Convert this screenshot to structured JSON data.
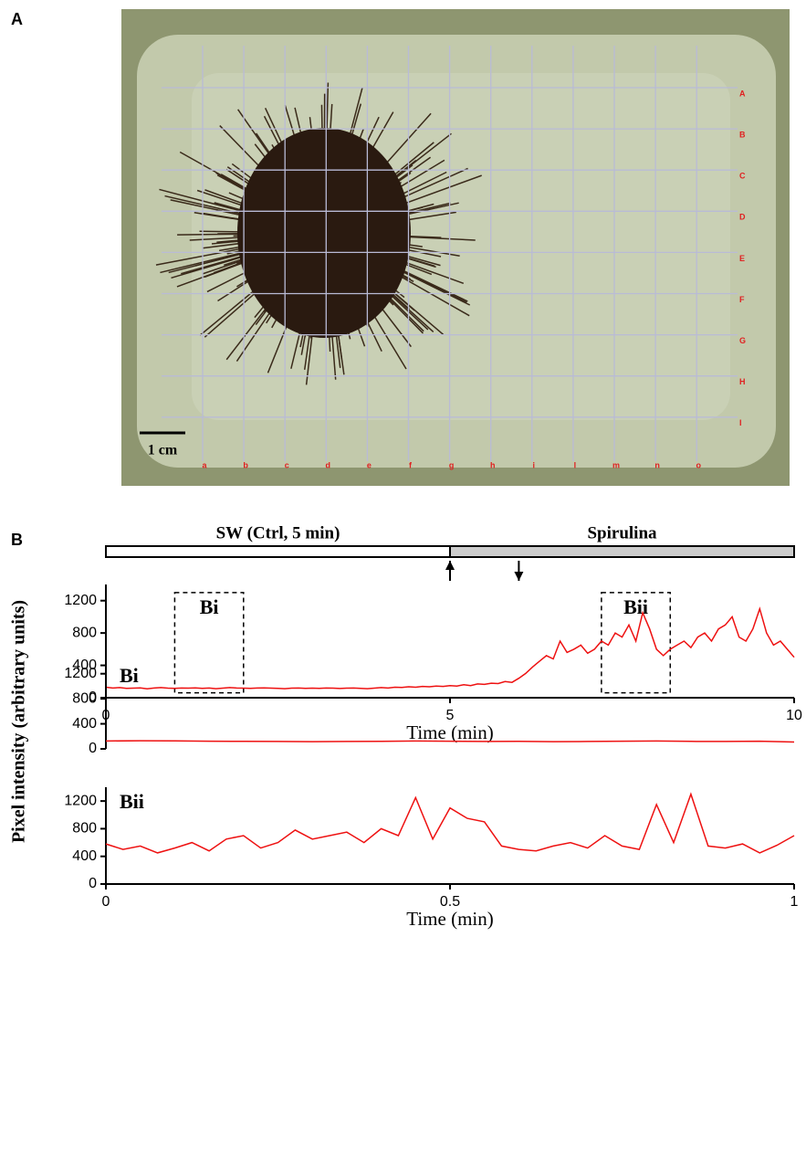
{
  "figure": {
    "panel_a_label": "A",
    "panel_b_label": "B",
    "photo": {
      "row_labels": [
        "A",
        "B",
        "C",
        "D",
        "E",
        "F",
        "G",
        "H",
        "I"
      ],
      "column_labels": [
        "a",
        "b",
        "c",
        "d",
        "e",
        "f",
        "g",
        "h",
        "i",
        "l",
        "m",
        "n",
        "o"
      ],
      "scale_bar": "1 cm"
    },
    "y_label": "Pixel intensity (arbitrary units)"
  },
  "chart_data": [
    {
      "type": "line",
      "xlabel": "Time (min)",
      "color": "#ee1111",
      "xlim": [
        0,
        10
      ],
      "xticks": [
        0,
        5,
        10
      ],
      "ylim": [
        0,
        1400
      ],
      "yticks": [
        0,
        400,
        800,
        1200
      ],
      "conditions": [
        {
          "label": "SW (Ctrl, 5 min)",
          "x": [
            0,
            5
          ]
        },
        {
          "label": "Spirulina",
          "x": [
            5,
            10
          ]
        }
      ],
      "arrows": [
        {
          "x": 5,
          "direction": "up"
        },
        {
          "x": 6,
          "direction": "down"
        }
      ],
      "highlights": [
        {
          "label": "Bi",
          "xlim": [
            1.0,
            2.0
          ],
          "ylim": [
            60,
            1300
          ]
        },
        {
          "label": "Bii",
          "xlim": [
            7.2,
            8.2
          ],
          "ylim": [
            60,
            1300
          ]
        }
      ],
      "x": [
        0,
        0.1,
        0.2,
        0.3,
        0.4,
        0.5,
        0.6,
        0.7,
        0.8,
        0.9,
        1,
        1.1,
        1.2,
        1.3,
        1.4,
        1.5,
        1.6,
        1.7,
        1.8,
        1.9,
        2,
        2.1,
        2.2,
        2.3,
        2.4,
        2.5,
        2.6,
        2.7,
        2.8,
        2.9,
        3,
        3.1,
        3.2,
        3.3,
        3.4,
        3.5,
        3.6,
        3.7,
        3.8,
        3.9,
        4,
        4.1,
        4.2,
        4.3,
        4.4,
        4.5,
        4.6,
        4.7,
        4.8,
        4.9,
        5,
        5.1,
        5.2,
        5.3,
        5.4,
        5.5,
        5.6,
        5.7,
        5.8,
        5.9,
        6,
        6.1,
        6.2,
        6.3,
        6.4,
        6.5,
        6.6,
        6.7,
        6.8,
        6.9,
        7,
        7.1,
        7.2,
        7.3,
        7.4,
        7.5,
        7.6,
        7.7,
        7.8,
        7.9,
        8,
        8.1,
        8.2,
        8.3,
        8.4,
        8.5,
        8.6,
        8.7,
        8.8,
        8.9,
        9,
        9.1,
        9.2,
        9.3,
        9.4,
        9.5,
        9.6,
        9.7,
        9.8,
        9.9,
        10
      ],
      "values": [
        130,
        120,
        125,
        115,
        118,
        122,
        110,
        120,
        125,
        118,
        115,
        120,
        118,
        122,
        115,
        120,
        112,
        118,
        125,
        120,
        118,
        115,
        120,
        122,
        118,
        115,
        112,
        118,
        120,
        116,
        118,
        115,
        120,
        118,
        114,
        118,
        120,
        116,
        112,
        118,
        125,
        120,
        130,
        128,
        135,
        130,
        140,
        135,
        145,
        140,
        150,
        145,
        160,
        150,
        170,
        165,
        180,
        175,
        200,
        190,
        240,
        300,
        380,
        450,
        520,
        480,
        700,
        560,
        600,
        650,
        550,
        600,
        700,
        650,
        800,
        750,
        900,
        700,
        1050,
        850,
        600,
        520,
        600,
        650,
        700,
        620,
        750,
        800,
        700,
        850,
        900,
        1000,
        750,
        700,
        850,
        1100,
        800,
        650,
        700,
        600,
        500
      ]
    },
    {
      "type": "line",
      "title": "Bi",
      "color": "#ee1111",
      "xlim": [
        0,
        1
      ],
      "ylim": [
        0,
        1400
      ],
      "yticks": [
        0,
        400,
        800,
        1200
      ],
      "x": [
        0,
        0.05,
        0.1,
        0.15,
        0.2,
        0.25,
        0.3,
        0.35,
        0.4,
        0.45,
        0.5,
        0.55,
        0.6,
        0.65,
        0.7,
        0.75,
        0.8,
        0.85,
        0.9,
        0.95,
        1
      ],
      "values": [
        125,
        130,
        128,
        122,
        120,
        118,
        115,
        118,
        120,
        125,
        122,
        118,
        120,
        115,
        118,
        122,
        125,
        120,
        118,
        122,
        110
      ]
    },
    {
      "type": "line",
      "title": "Bii",
      "xlabel": "Time (min)",
      "color": "#ee1111",
      "xlim": [
        0,
        1
      ],
      "xticks": [
        0,
        0.5,
        1
      ],
      "ylim": [
        0,
        1400
      ],
      "yticks": [
        0,
        400,
        800,
        1200
      ],
      "x": [
        0,
        0.025,
        0.05,
        0.075,
        0.1,
        0.125,
        0.15,
        0.175,
        0.2,
        0.225,
        0.25,
        0.275,
        0.3,
        0.325,
        0.35,
        0.375,
        0.4,
        0.425,
        0.45,
        0.475,
        0.5,
        0.525,
        0.55,
        0.575,
        0.6,
        0.625,
        0.65,
        0.675,
        0.7,
        0.725,
        0.75,
        0.775,
        0.8,
        0.825,
        0.85,
        0.875,
        0.9,
        0.925,
        0.95,
        0.975,
        1
      ],
      "values": [
        580,
        500,
        550,
        450,
        520,
        600,
        480,
        650,
        700,
        520,
        600,
        780,
        650,
        700,
        750,
        600,
        800,
        700,
        1250,
        650,
        1100,
        950,
        900,
        550,
        500,
        480,
        550,
        600,
        520,
        700,
        550,
        500,
        1150,
        600,
        1300,
        550,
        520,
        580,
        450,
        560,
        700
      ]
    }
  ]
}
